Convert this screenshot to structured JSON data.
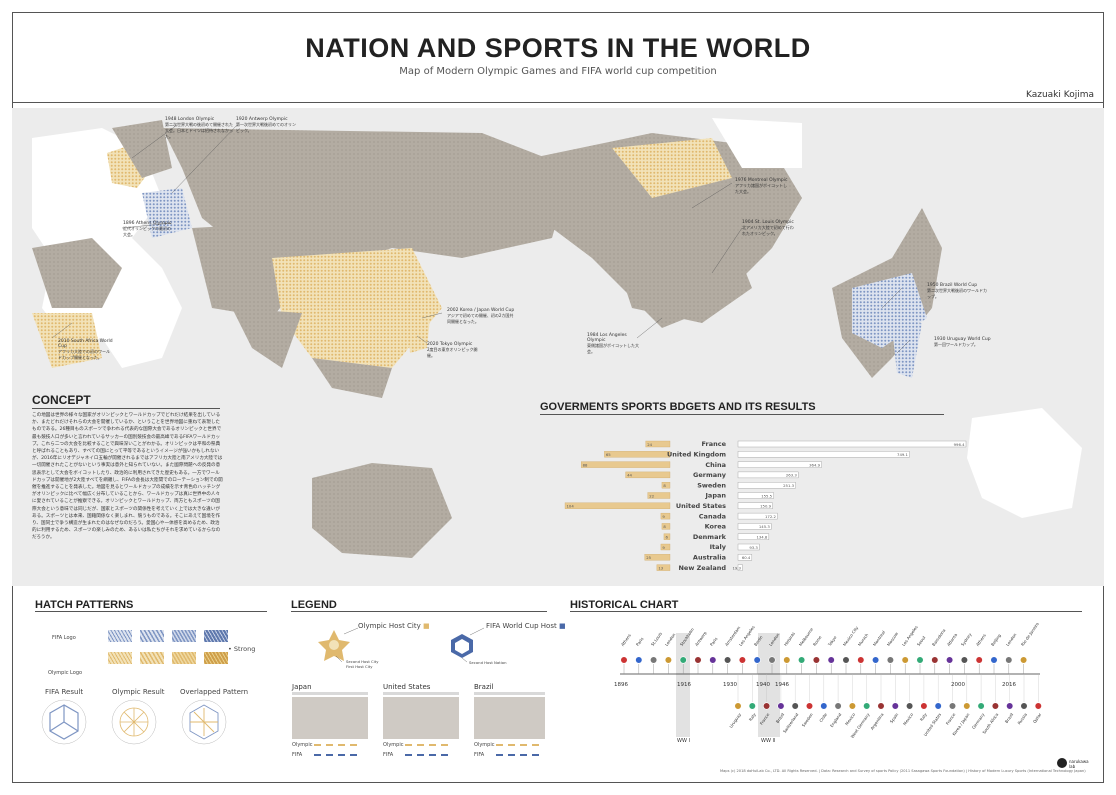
{
  "header": {
    "title": "NATION AND SPORTS IN THE WORLD",
    "subtitle": "Map of Modern Olympic Games and FIFA world cup competition",
    "author": "Kazuaki Kojima"
  },
  "map_annotations": [
    {
      "id": "london",
      "label": "1948 London Olympic",
      "note": "第二次世界大戦の後初めて開催された大会。日本とドイツは招待されなかった。"
    },
    {
      "id": "antwerp",
      "label": "1920 Antwerp Olympic",
      "note": "第一次世界大戦後初めてのオリンピック。"
    },
    {
      "id": "athens",
      "label": "1896 Athens Olympic",
      "note": "近代オリンピックの最初の大会。"
    },
    {
      "id": "south_africa",
      "label": "2010 South Africa World Cup",
      "note": "アフリカ大陸での初のワールドカップ開催となった。"
    },
    {
      "id": "montreal",
      "label": "1976 Montreal Olympic",
      "note": "アフリカ諸国がボイコットした大会。"
    },
    {
      "id": "st_louis",
      "label": "1904 St. Louis Olympic",
      "note": "北アメリカ大陸で初めて行われたオリンピック。"
    },
    {
      "id": "korea_japan",
      "label": "2002 Korea / Japan World Cup",
      "note": "アジアで初めての開催、初の2カ国共同開催となった。"
    },
    {
      "id": "tokyo",
      "label": "2020 Tokyo Olympic",
      "note": "2度目の東京オリンピック開催。"
    },
    {
      "id": "los_angeles",
      "label": "1984 Los Angeles Olympic",
      "note": "東側諸国がボイコットした大会。"
    },
    {
      "id": "brazil",
      "label": "1950 Brazil World Cup",
      "note": "第二次世界大戦後初のワールドカップ。"
    },
    {
      "id": "uruguay",
      "label": "1930 Uruguay World Cup",
      "note": "第一回ワールドカップ。"
    }
  ],
  "concept": {
    "heading": "CONCEPT",
    "text": "この地図は世界の様々な国家がオリンピックとワールドカップでどれだけ結果を出しているか、またどれだけそれらの大会を開催しているか、ということを世界地図に重ねて表現したものである。26種目ものスポーツで争われる代表的な国際大会であるオリンピックと世界で最も競技人口が多いと言われているサッカーの国別競技会の最高峰であるFIFAワールドカップ。これら二つの大会を比較することで興味深いことがわかる。オリンピックは平和の祭典と呼ばれることもあり、すべての国にとって平等であるというイメージが強いかもしれないが、2016年にリオデジャネイロ五輪が開催されるまではアフリカ大陸と南アメリカ大陸では一切開催されたことがないという事実は意外と知られていない。また國際問題への反発の意思表示として大会をボイコットしたり、政治的に利用されてきた歴史もある。一方でワールドカップは開催地が2大陸すべてを網羅し、FIFAの会長は大陸間でのローテーション制での開催を推進することを発表した。地図を見るとワールドカップの成績を示す青色のハッチングがオリンピックに比べて幅広く分布していることから、ワールドカップは真に世界中の人々に愛されていることが推察できる。オリンピックとワールドカップ、両方ともスポーツの国際大会という意味では同じだが、国家とスポーツの関係性を考えていく上では大きな違いがある。スポーツとは本来、国籍関係なく楽しまれ、競うものである。そこにあえて国境を作り、国同士で争う構造が生まれたのはなぜなのだろう。愛国心や一体感を高めるため、政治的に利用するため、スポーツの楽しみのため、あるいは私たちがそれを求めているからなのだろうか。"
  },
  "budget": {
    "heading": "GOVERMENTS SPORTS BDGETS AND ITS RESULTS"
  },
  "chart_data": {
    "type": "bar",
    "title": "GOVERMENTS SPORTS BDGETS AND ITS RESULTS",
    "categories": [
      "France",
      "United Kingdom",
      "China",
      "Germany",
      "Sweden",
      "Japan",
      "United States",
      "Canada",
      "Korea",
      "Denmark",
      "Italy",
      "Australia",
      "New Zealand"
    ],
    "series": [
      {
        "values": [
          24,
          65,
          88,
          44,
          8,
          22,
          104,
          9,
          8,
          6,
          9,
          25,
          13
        ]
      },
      {
        "values": [
          996.4,
          749.1,
          364.9,
          263.3,
          251.3,
          155.5,
          150.9,
          172.2,
          145.3,
          134.8,
          93.3,
          60.4,
          19.3
        ]
      }
    ],
    "value_labels_left": [
      "24",
      "65",
      "88",
      "44",
      "8",
      "22",
      "104",
      "9",
      "8",
      "6",
      "9",
      "25",
      "13"
    ],
    "value_labels_right": [
      "996.4",
      "749.1",
      "364.9",
      "263.3",
      "251.3",
      "155.5",
      "150.9",
      "172.2",
      "145.3",
      "134.8",
      "93.3",
      "60.4",
      "19.3"
    ],
    "colors": {
      "left": "#e8c98f",
      "right": "#ffffff"
    }
  },
  "hatch": {
    "heading": "HATCH PATTERNS",
    "fifa_logo": "FIFA Logo",
    "olympic_logo": "Olympic Logo",
    "strong": "Strong",
    "fifa_result": "FIFA Result",
    "olympic_result": "Olympic Result",
    "overlapped": "Overlapped Pattern",
    "fifa_color": "#7f96c3",
    "olympic_color": "#e0b96e"
  },
  "legend": {
    "heading": "LEGEND",
    "olympic_host": "Olympic Host City",
    "fifa_host": "FIFA World Cup Host",
    "olympic_sub1": "Second Host City",
    "olympic_sub2": "First Host City",
    "fifa_sub": "Second Host Nation",
    "cards": [
      {
        "name": "Japan",
        "olympic": "Olympic",
        "fifa": "FIFA"
      },
      {
        "name": "United States",
        "olympic": "Olympic",
        "fifa": "FIFA"
      },
      {
        "name": "Brazil",
        "olympic": "Olympic",
        "fifa": "FIFA"
      }
    ]
  },
  "historical": {
    "heading": "HISTORICAL CHART",
    "years": [
      "1896",
      "1916",
      "1930",
      "1940",
      "1946",
      "2000",
      "2016"
    ],
    "ww1": "WW I",
    "ww2": "WW II",
    "olympic_cities": [
      "Athens",
      "Paris",
      "St.Louis",
      "London",
      "Stockholm",
      "Antwerp",
      "Paris",
      "Amsterdam",
      "Los Angeles",
      "Berlin",
      "London",
      "Helsinki",
      "Melbourne",
      "Rome",
      "Tokyo",
      "Mexico City",
      "Munich",
      "Montreal",
      "Moscow",
      "Los Angeles",
      "Seoul",
      "Barcelona",
      "Atlanta",
      "Sydney",
      "Athens",
      "Beijing",
      "London",
      "Rio de Janeiro"
    ],
    "wc_nations": [
      "Uruguay",
      "Italy",
      "France",
      "Brazil",
      "Switzerland",
      "Sweden",
      "Chile",
      "England",
      "Mexico",
      "West Germany",
      "Argentina",
      "Spain",
      "Mexico",
      "Italy",
      "United States",
      "France",
      "Korea / Japan",
      "Germany",
      "South Africa",
      "Brazil",
      "Russia",
      "Qatar"
    ]
  },
  "footer": {
    "copy": "Maps (c) 2018 doHuiLab Co., LTD. All Rights Reserved. | Data: Research and Survey of sports Policy (2011 Sasagawa Sports Foundation) | History of Modern Luxury Sports (International Technology Japan)",
    "lab1": "narukawa",
    "lab2": "lab"
  },
  "colors": {
    "fifa": "#7f96c3",
    "olympic": "#e0b96e",
    "land": "#b3aca2",
    "map_bg": "#ececec"
  }
}
